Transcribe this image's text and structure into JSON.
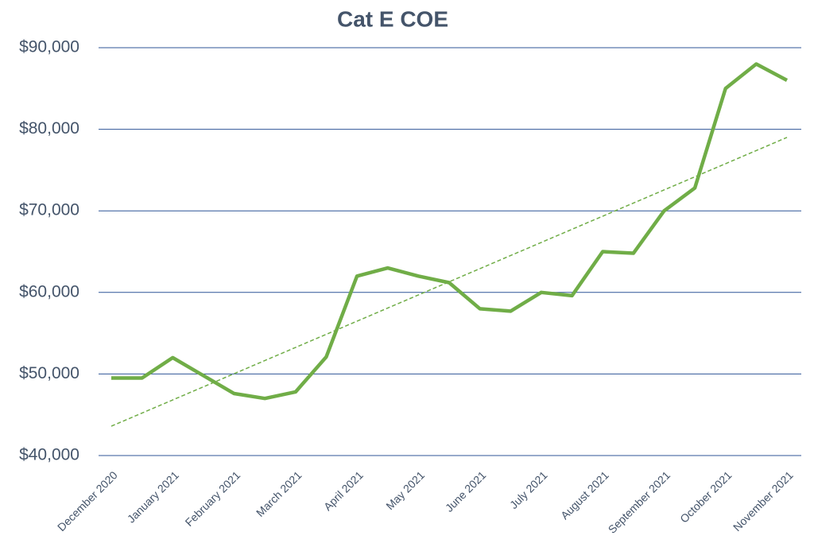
{
  "chart_data": {
    "type": "line",
    "title": "Cat E COE",
    "categories": [
      "December 2020",
      null,
      "January 2021",
      null,
      "February 2021",
      null,
      "March 2021",
      null,
      "April 2021",
      null,
      "May 2021",
      null,
      "June 2021",
      null,
      "July 2021",
      null,
      "August 2021",
      null,
      "September 2021",
      null,
      "October 2021",
      null,
      "November 2021"
    ],
    "series": [
      {
        "name": "Cat E COE",
        "color": "#70ad47",
        "values": [
          49500,
          49500,
          52000,
          49800,
          47600,
          47000,
          47800,
          52100,
          62000,
          63000,
          62000,
          61200,
          58000,
          57700,
          60000,
          59600,
          65000,
          64800,
          70000,
          72800,
          85000,
          88000,
          86000
        ]
      }
    ],
    "trendline": {
      "color": "#70ad47",
      "values": [
        43600,
        79000
      ]
    },
    "ylim": [
      40000,
      90000
    ],
    "yticks": [
      {
        "value": 40000,
        "label": "$40,000"
      },
      {
        "value": 50000,
        "label": "$50,000"
      },
      {
        "value": 60000,
        "label": "$60,000"
      },
      {
        "value": 70000,
        "label": "$70,000"
      },
      {
        "value": 80000,
        "label": "$80,000"
      },
      {
        "value": 90000,
        "label": "$90,000"
      }
    ],
    "grid": true
  }
}
